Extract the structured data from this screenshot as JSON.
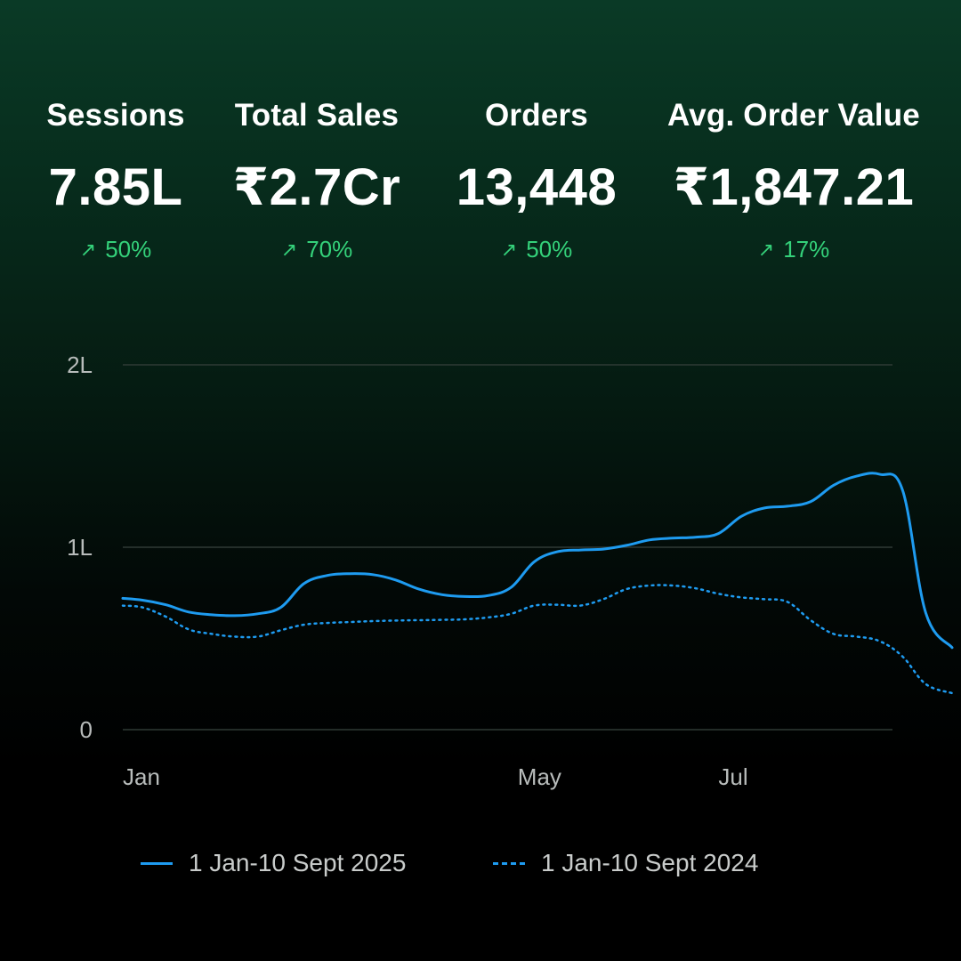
{
  "kpis": [
    {
      "label": "Sessions",
      "value": "7.85L",
      "change": "50%"
    },
    {
      "label": "Total Sales",
      "value": "₹2.7Cr",
      "change": "70%"
    },
    {
      "label": "Orders",
      "value": "13,448",
      "change": "50%"
    },
    {
      "label": "Avg. Order Value",
      "value": "₹1,847.21",
      "change": "17%"
    }
  ],
  "colors": {
    "positive": "#34d17a",
    "series_line": "#1e9bf0",
    "gridline": "#2f3a35",
    "tick_text": "#b8bcbb"
  },
  "icons": {
    "trend": "arrow-up-right-icon"
  },
  "chart_data": {
    "type": "line",
    "y_ticks": [
      {
        "value": 0,
        "label": "0"
      },
      {
        "value": 100000,
        "label": "1L"
      },
      {
        "value": 200000,
        "label": "2L"
      }
    ],
    "ylim": [
      0,
      200000
    ],
    "x_ticks": [
      {
        "date": "2025-01-01",
        "label": "Jan"
      },
      {
        "date": "2025-05-01",
        "label": "May"
      },
      {
        "date": "2025-07-01",
        "label": "Jul"
      }
    ],
    "xlim": [
      "2025-01-01",
      "2025-09-10"
    ],
    "grid": true,
    "legend_position": "bottom",
    "series": [
      {
        "name": "1 Jan-10 Sept 2025",
        "style": "solid",
        "points": [
          [
            "2025-01-01",
            72000
          ],
          [
            "2025-01-07",
            71000
          ],
          [
            "2025-01-14",
            68500
          ],
          [
            "2025-01-21",
            64500
          ],
          [
            "2025-01-28",
            63000
          ],
          [
            "2025-02-04",
            62500
          ],
          [
            "2025-02-11",
            63500
          ],
          [
            "2025-02-18",
            67000
          ],
          [
            "2025-02-25",
            80000
          ],
          [
            "2025-03-04",
            84500
          ],
          [
            "2025-03-11",
            85500
          ],
          [
            "2025-03-18",
            85000
          ],
          [
            "2025-03-25",
            82000
          ],
          [
            "2025-04-01",
            77000
          ],
          [
            "2025-04-08",
            74000
          ],
          [
            "2025-04-15",
            73000
          ],
          [
            "2025-04-22",
            73500
          ],
          [
            "2025-04-29",
            78000
          ],
          [
            "2025-05-06",
            92000
          ],
          [
            "2025-05-13",
            97500
          ],
          [
            "2025-05-20",
            98500
          ],
          [
            "2025-05-27",
            99000
          ],
          [
            "2025-06-03",
            101000
          ],
          [
            "2025-06-10",
            104000
          ],
          [
            "2025-06-17",
            105000
          ],
          [
            "2025-06-24",
            105500
          ],
          [
            "2025-07-01",
            107500
          ],
          [
            "2025-07-08",
            117000
          ],
          [
            "2025-07-15",
            121500
          ],
          [
            "2025-07-22",
            122500
          ],
          [
            "2025-07-29",
            125000
          ],
          [
            "2025-08-05",
            134000
          ],
          [
            "2025-08-12",
            139000
          ],
          [
            "2025-08-19",
            140000
          ],
          [
            "2025-08-26",
            131000
          ],
          [
            "2025-09-02",
            64000
          ],
          [
            "2025-09-10",
            45000
          ]
        ]
      },
      {
        "name": "1 Jan-10 Sept 2024",
        "style": "dotted",
        "points": [
          [
            "2025-01-01",
            68000
          ],
          [
            "2025-01-07",
            67000
          ],
          [
            "2025-01-14",
            62000
          ],
          [
            "2025-01-21",
            55000
          ],
          [
            "2025-01-28",
            52500
          ],
          [
            "2025-02-04",
            51000
          ],
          [
            "2025-02-11",
            51000
          ],
          [
            "2025-02-18",
            54500
          ],
          [
            "2025-02-25",
            57500
          ],
          [
            "2025-03-04",
            58500
          ],
          [
            "2025-03-11",
            59000
          ],
          [
            "2025-03-18",
            59500
          ],
          [
            "2025-03-25",
            59800
          ],
          [
            "2025-04-01",
            60000
          ],
          [
            "2025-04-08",
            60200
          ],
          [
            "2025-04-15",
            60500
          ],
          [
            "2025-04-22",
            61500
          ],
          [
            "2025-04-29",
            63500
          ],
          [
            "2025-05-06",
            68000
          ],
          [
            "2025-05-13",
            68500
          ],
          [
            "2025-05-20",
            68000
          ],
          [
            "2025-05-27",
            71500
          ],
          [
            "2025-06-03",
            77000
          ],
          [
            "2025-06-10",
            79000
          ],
          [
            "2025-06-17",
            79000
          ],
          [
            "2025-06-24",
            77500
          ],
          [
            "2025-07-01",
            74500
          ],
          [
            "2025-07-08",
            72500
          ],
          [
            "2025-07-15",
            71500
          ],
          [
            "2025-07-22",
            70000
          ],
          [
            "2025-07-29",
            60000
          ],
          [
            "2025-08-05",
            52500
          ],
          [
            "2025-08-12",
            51000
          ],
          [
            "2025-08-19",
            48500
          ],
          [
            "2025-08-26",
            40000
          ],
          [
            "2025-09-02",
            25000
          ],
          [
            "2025-09-10",
            20000
          ]
        ]
      }
    ]
  }
}
